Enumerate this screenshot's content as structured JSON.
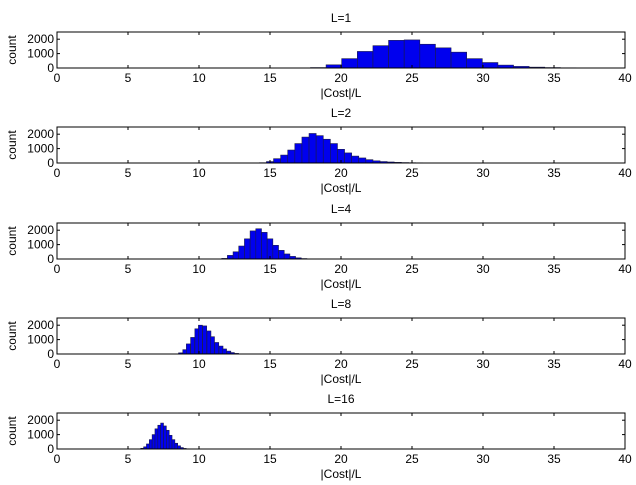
{
  "chart_data": [
    {
      "type": "bar",
      "title": "L=1",
      "xlabel": "|Cost|/L",
      "ylabel": "count",
      "xlim": [
        0,
        40
      ],
      "ylim": [
        0,
        2500
      ],
      "xticks": [
        "0",
        "5",
        "10",
        "15",
        "20",
        "25",
        "30",
        "35",
        "40"
      ],
      "yticks": [
        "0",
        "1000",
        "2000"
      ],
      "bin_width": 1.1,
      "bins": [
        {
          "x": 18.4,
          "y": 30
        },
        {
          "x": 19.5,
          "y": 220
        },
        {
          "x": 20.6,
          "y": 650
        },
        {
          "x": 21.7,
          "y": 1150
        },
        {
          "x": 22.8,
          "y": 1550
        },
        {
          "x": 23.9,
          "y": 1920
        },
        {
          "x": 25.0,
          "y": 1950
        },
        {
          "x": 26.1,
          "y": 1650
        },
        {
          "x": 27.2,
          "y": 1400
        },
        {
          "x": 28.3,
          "y": 1100
        },
        {
          "x": 29.4,
          "y": 650
        },
        {
          "x": 30.5,
          "y": 380
        },
        {
          "x": 31.6,
          "y": 200
        },
        {
          "x": 32.7,
          "y": 110
        },
        {
          "x": 33.8,
          "y": 60
        },
        {
          "x": 34.9,
          "y": 30
        },
        {
          "x": 36.0,
          "y": 15
        },
        {
          "x": 37.1,
          "y": 8
        },
        {
          "x": 38.2,
          "y": 4
        }
      ]
    },
    {
      "type": "bar",
      "title": "L=2",
      "xlabel": "|Cost|/L",
      "ylabel": "count",
      "xlim": [
        0,
        40
      ],
      "ylim": [
        0,
        2500
      ],
      "xticks": [
        "0",
        "5",
        "10",
        "15",
        "20",
        "25",
        "30",
        "35",
        "40"
      ],
      "yticks": [
        "0",
        "1000",
        "2000"
      ],
      "bin_width": 0.5,
      "bins": [
        {
          "x": 14.5,
          "y": 20
        },
        {
          "x": 15.0,
          "y": 100
        },
        {
          "x": 15.5,
          "y": 300
        },
        {
          "x": 16.0,
          "y": 550
        },
        {
          "x": 16.5,
          "y": 900
        },
        {
          "x": 17.0,
          "y": 1350
        },
        {
          "x": 17.5,
          "y": 1800
        },
        {
          "x": 18.0,
          "y": 2050
        },
        {
          "x": 18.5,
          "y": 1900
        },
        {
          "x": 19.0,
          "y": 1650
        },
        {
          "x": 19.5,
          "y": 1350
        },
        {
          "x": 20.0,
          "y": 950
        },
        {
          "x": 20.5,
          "y": 700
        },
        {
          "x": 21.0,
          "y": 480
        },
        {
          "x": 21.5,
          "y": 350
        },
        {
          "x": 22.0,
          "y": 230
        },
        {
          "x": 22.5,
          "y": 150
        },
        {
          "x": 23.0,
          "y": 100
        },
        {
          "x": 23.5,
          "y": 70
        },
        {
          "x": 24.0,
          "y": 45
        },
        {
          "x": 24.5,
          "y": 30
        },
        {
          "x": 25.0,
          "y": 20
        },
        {
          "x": 25.5,
          "y": 15
        },
        {
          "x": 26.0,
          "y": 10
        },
        {
          "x": 26.5,
          "y": 6
        },
        {
          "x": 27.0,
          "y": 4
        },
        {
          "x": 27.5,
          "y": 3
        },
        {
          "x": 28.0,
          "y": 2
        },
        {
          "x": 28.5,
          "y": 2
        },
        {
          "x": 29.0,
          "y": 1
        }
      ]
    },
    {
      "type": "bar",
      "title": "L=4",
      "xlabel": "|Cost|/L",
      "ylabel": "count",
      "xlim": [
        0,
        40
      ],
      "ylim": [
        0,
        2500
      ],
      "xticks": [
        "0",
        "5",
        "10",
        "15",
        "20",
        "25",
        "30",
        "35",
        "40"
      ],
      "yticks": [
        "0",
        "1000",
        "2000"
      ],
      "bin_width": 0.4,
      "bins": [
        {
          "x": 11.8,
          "y": 40
        },
        {
          "x": 12.2,
          "y": 250
        },
        {
          "x": 12.6,
          "y": 500
        },
        {
          "x": 13.0,
          "y": 900
        },
        {
          "x": 13.4,
          "y": 1400
        },
        {
          "x": 13.8,
          "y": 1950
        },
        {
          "x": 14.2,
          "y": 2100
        },
        {
          "x": 14.6,
          "y": 1850
        },
        {
          "x": 15.0,
          "y": 1400
        },
        {
          "x": 15.4,
          "y": 950
        },
        {
          "x": 15.8,
          "y": 600
        },
        {
          "x": 16.2,
          "y": 350
        },
        {
          "x": 16.6,
          "y": 180
        },
        {
          "x": 17.0,
          "y": 80
        },
        {
          "x": 17.4,
          "y": 30
        },
        {
          "x": 17.8,
          "y": 10
        }
      ]
    },
    {
      "type": "bar",
      "title": "L=8",
      "xlabel": "|Cost|/L",
      "ylabel": "count",
      "xlim": [
        0,
        40
      ],
      "ylim": [
        0,
        2500
      ],
      "xticks": [
        "0",
        "5",
        "10",
        "15",
        "20",
        "25",
        "30",
        "35",
        "40"
      ],
      "yticks": [
        "0",
        "1000",
        "2000"
      ],
      "bin_width": 0.28,
      "bins": [
        {
          "x": 8.7,
          "y": 80
        },
        {
          "x": 9.0,
          "y": 300
        },
        {
          "x": 9.25,
          "y": 700
        },
        {
          "x": 9.55,
          "y": 1150
        },
        {
          "x": 9.85,
          "y": 1750
        },
        {
          "x": 10.1,
          "y": 2000
        },
        {
          "x": 10.4,
          "y": 1950
        },
        {
          "x": 10.7,
          "y": 1600
        },
        {
          "x": 10.95,
          "y": 1200
        },
        {
          "x": 11.25,
          "y": 800
        },
        {
          "x": 11.55,
          "y": 550
        },
        {
          "x": 11.8,
          "y": 350
        },
        {
          "x": 12.1,
          "y": 200
        },
        {
          "x": 12.35,
          "y": 100
        },
        {
          "x": 12.65,
          "y": 40
        }
      ]
    },
    {
      "type": "bar",
      "title": "L=16",
      "xlabel": "|Cost|/L",
      "ylabel": "count",
      "xlim": [
        0,
        40
      ],
      "ylim": [
        0,
        2500
      ],
      "xticks": [
        "0",
        "5",
        "10",
        "15",
        "20",
        "25",
        "30",
        "35",
        "40"
      ],
      "yticks": [
        "0",
        "1000",
        "2000"
      ],
      "bin_width": 0.2,
      "bins": [
        {
          "x": 6.0,
          "y": 50
        },
        {
          "x": 6.2,
          "y": 150
        },
        {
          "x": 6.4,
          "y": 350
        },
        {
          "x": 6.6,
          "y": 650
        },
        {
          "x": 6.8,
          "y": 1000
        },
        {
          "x": 7.0,
          "y": 1400
        },
        {
          "x": 7.2,
          "y": 1650
        },
        {
          "x": 7.4,
          "y": 1800
        },
        {
          "x": 7.6,
          "y": 1600
        },
        {
          "x": 7.8,
          "y": 1300
        },
        {
          "x": 8.0,
          "y": 950
        },
        {
          "x": 8.2,
          "y": 650
        },
        {
          "x": 8.4,
          "y": 400
        },
        {
          "x": 8.6,
          "y": 220
        },
        {
          "x": 8.8,
          "y": 100
        },
        {
          "x": 9.0,
          "y": 40
        },
        {
          "x": 9.2,
          "y": 15
        }
      ]
    }
  ],
  "colors": {
    "bar_fill": "#0000ee",
    "bar_edge": "#1a1a4a",
    "axis": "#000000",
    "background": "#ffffff"
  }
}
